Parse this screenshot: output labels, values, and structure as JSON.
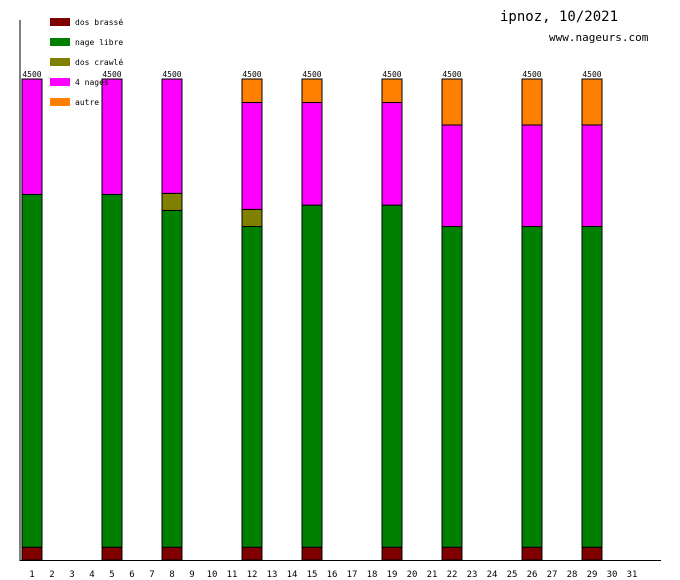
{
  "header": {
    "title": "ipnoz, 10/2021",
    "site": "www.nageurs.com"
  },
  "chart_data": {
    "type": "bar",
    "stacked": true,
    "categories": [
      "1",
      "2",
      "3",
      "4",
      "5",
      "6",
      "7",
      "8",
      "9",
      "10",
      "11",
      "12",
      "13",
      "14",
      "15",
      "16",
      "17",
      "18",
      "19",
      "20",
      "21",
      "22",
      "23",
      "24",
      "25",
      "26",
      "27",
      "28",
      "29",
      "30",
      "31"
    ],
    "ylim": [
      0,
      4500
    ],
    "series": [
      {
        "name": "dos brassé",
        "color": "#800000",
        "values": [
          120,
          0,
          0,
          0,
          120,
          0,
          0,
          120,
          0,
          0,
          0,
          120,
          0,
          0,
          120,
          0,
          0,
          0,
          120,
          0,
          0,
          120,
          0,
          0,
          0,
          120,
          0,
          0,
          120,
          0,
          0
        ]
      },
      {
        "name": "nage libre",
        "color": "#008000",
        "values": [
          3300,
          0,
          0,
          0,
          3300,
          0,
          0,
          3150,
          0,
          0,
          0,
          3000,
          0,
          0,
          3200,
          0,
          0,
          0,
          3200,
          0,
          0,
          3000,
          0,
          0,
          0,
          3000,
          0,
          0,
          3000,
          0,
          0
        ]
      },
      {
        "name": "dos crawlé",
        "color": "#808000",
        "values": [
          0,
          0,
          0,
          0,
          0,
          0,
          0,
          160,
          0,
          0,
          0,
          160,
          0,
          0,
          0,
          0,
          0,
          0,
          0,
          0,
          0,
          0,
          0,
          0,
          0,
          0,
          0,
          0,
          0,
          0,
          0
        ]
      },
      {
        "name": "4 nages",
        "color": "#ff00ff",
        "values": [
          1080,
          0,
          0,
          0,
          1080,
          0,
          0,
          1070,
          0,
          0,
          0,
          1000,
          0,
          0,
          960,
          0,
          0,
          0,
          960,
          0,
          0,
          950,
          0,
          0,
          0,
          950,
          0,
          0,
          950,
          0,
          0
        ]
      },
      {
        "name": "autre",
        "color": "#ff8000",
        "values": [
          0,
          0,
          0,
          0,
          0,
          0,
          0,
          0,
          0,
          0,
          0,
          220,
          0,
          0,
          220,
          0,
          0,
          0,
          220,
          0,
          0,
          430,
          0,
          0,
          0,
          430,
          0,
          0,
          430,
          0,
          0
        ]
      }
    ],
    "totals": [
      "4500",
      "",
      "",
      "",
      "4500",
      "",
      "",
      "4500",
      "",
      "",
      "",
      "4500",
      "",
      "",
      "4500",
      "",
      "",
      "",
      "4500",
      "",
      "",
      "4500",
      "",
      "",
      "",
      "4500",
      "",
      "",
      "4500",
      "",
      ""
    ]
  }
}
